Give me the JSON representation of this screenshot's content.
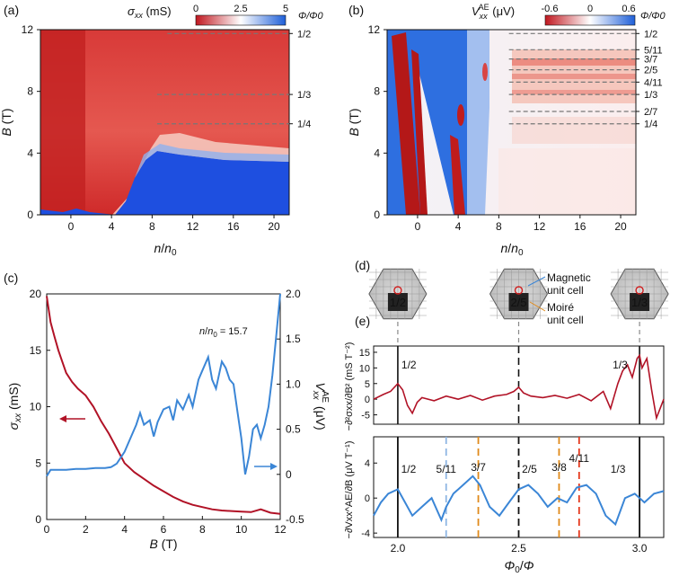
{
  "chart_data": [
    {
      "panel": "(a)",
      "type": "heatmap",
      "title": "σxx (mS)",
      "colorbar": {
        "label_sym": "σ",
        "label_sub": "xx",
        "label_unit": " (mS)",
        "ticks": [
          "0",
          "2.5",
          "5"
        ],
        "range": [
          0,
          5
        ]
      },
      "xlabel_sym": "n",
      "xlabel_tail": "/",
      "xlabel_sym2": "n",
      "xlabel_sub": "0",
      "ylabel_sym": "B",
      "ylabel_unit": " (T)",
      "xlim": [
        -3,
        21.5
      ],
      "ylim": [
        0,
        12
      ],
      "xticks": [
        0,
        4,
        8,
        12,
        16,
        20
      ],
      "yticks": [
        0,
        4,
        8,
        12
      ],
      "flux_label": "Φ/Φ0",
      "flux_lines": [
        {
          "label": "1/2",
          "B": 11.75,
          "x_start": 9.5
        },
        {
          "label": "1/3",
          "B": 7.8,
          "x_start": 8.5
        },
        {
          "label": "1/4",
          "B": 5.9,
          "x_start": 8.5
        }
      ]
    },
    {
      "panel": "(b)",
      "type": "heatmap",
      "title": "Vxx^AE (μV)",
      "colorbar": {
        "label_sym": "V",
        "label_sub": "xx",
        "label_sup": "AE",
        "label_unit": " (μV)",
        "ticks": [
          "-0.6",
          "0",
          "0.6"
        ],
        "range": [
          -0.6,
          0.6
        ]
      },
      "xlabel_sym": "n",
      "xlabel_tail": "/",
      "xlabel_sym2": "n",
      "xlabel_sub": "0",
      "ylabel_sym": "B",
      "ylabel_unit": " (T)",
      "xlim": [
        -3,
        21.5
      ],
      "ylim": [
        0,
        12
      ],
      "xticks": [
        0,
        4,
        8,
        12,
        16,
        20
      ],
      "yticks": [
        0,
        4,
        8,
        12
      ],
      "flux_label": "Φ/Φ0",
      "flux_lines": [
        {
          "label": "1/2",
          "B": 11.75
        },
        {
          "label": "5/11",
          "B": 10.7
        },
        {
          "label": "3/7",
          "B": 10.1
        },
        {
          "label": "2/5",
          "B": 9.4
        },
        {
          "label": "4/11",
          "B": 8.6
        },
        {
          "label": "1/3",
          "B": 7.8
        },
        {
          "label": "2/7",
          "B": 6.7
        },
        {
          "label": "1/4",
          "B": 5.9
        }
      ]
    },
    {
      "panel": "(c)",
      "type": "line",
      "xlabel_sym": "B",
      "xlabel_unit": " (T)",
      "xlim": [
        0,
        12
      ],
      "xticks": [
        0,
        2,
        4,
        6,
        8,
        10,
        12
      ],
      "left_ylabel_sym": "σ",
      "left_ylabel_sub": "xx",
      "left_ylabel_unit": " (mS)",
      "left_ylim": [
        0,
        20
      ],
      "left_yticks": [
        0,
        5,
        10,
        15,
        20
      ],
      "right_ylabel_sym": "V",
      "right_ylabel_sub": "xx",
      "right_ylabel_sup": "AE",
      "right_ylabel_unit": " (μV)",
      "right_ylim": [
        -0.5,
        2.0
      ],
      "right_yticks": [
        "-0.5",
        "0",
        "0.5",
        "1.0",
        "1.5",
        "2.0"
      ],
      "annotation_sym": "n",
      "annotation_sym2": "n",
      "annotation_sub": "0",
      "annotation_value": " = 15.7",
      "series": [
        {
          "name": "σxx",
          "axis": "left",
          "color": "#b11226",
          "x": [
            0,
            0.2,
            0.4,
            0.6,
            0.8,
            1.0,
            1.3,
            1.6,
            2.0,
            2.4,
            2.8,
            3.2,
            3.6,
            4.0,
            4.5,
            5.0,
            5.5,
            6.0,
            6.5,
            7.0,
            7.5,
            8.0,
            8.5,
            9.0,
            9.5,
            10.0,
            10.5,
            11.0,
            11.5,
            12.0
          ],
          "y": [
            19.8,
            17.5,
            16.2,
            15.0,
            14.0,
            13.0,
            12.2,
            11.6,
            11.0,
            10.0,
            8.7,
            7.6,
            6.3,
            5.0,
            4.2,
            3.6,
            3.0,
            2.5,
            2.0,
            1.6,
            1.3,
            1.1,
            0.9,
            0.8,
            0.75,
            0.7,
            0.65,
            0.9,
            0.6,
            0.5
          ]
        },
        {
          "name": "Vxx^AE",
          "axis": "right",
          "color": "#3b86d6",
          "x": [
            0,
            0.2,
            0.5,
            1.0,
            1.5,
            2.0,
            2.5,
            3.0,
            3.3,
            3.6,
            4.0,
            4.3,
            4.6,
            4.8,
            5.0,
            5.3,
            5.5,
            5.7,
            6.0,
            6.3,
            6.5,
            6.7,
            7.0,
            7.3,
            7.5,
            7.8,
            8.0,
            8.3,
            8.5,
            8.7,
            9.0,
            9.2,
            9.4,
            9.6,
            9.8,
            10.0,
            10.2,
            10.4,
            10.6,
            10.8,
            11.0,
            11.2,
            11.4,
            11.6,
            11.8,
            12.0
          ],
          "y": [
            -0.02,
            0.05,
            0.05,
            0.05,
            0.06,
            0.06,
            0.07,
            0.07,
            0.08,
            0.12,
            0.25,
            0.4,
            0.55,
            0.68,
            0.55,
            0.6,
            0.42,
            0.58,
            0.72,
            0.75,
            0.6,
            0.82,
            0.72,
            0.88,
            0.75,
            1.05,
            1.15,
            1.3,
            1.05,
            0.95,
            1.25,
            1.18,
            1.05,
            1.0,
            0.7,
            0.4,
            0.0,
            0.2,
            0.5,
            0.55,
            0.4,
            0.55,
            0.75,
            1.1,
            1.55,
            2.0
          ]
        }
      ]
    },
    {
      "panel": "(d)",
      "type": "diagram",
      "cells": [
        {
          "label": "1/2",
          "x": 2.0
        },
        {
          "label": "2/5",
          "x": 2.5
        },
        {
          "label": "1/3",
          "x": 3.0
        }
      ],
      "legend": [
        "Magnetic",
        "unit cell",
        "Moiré",
        "unit cell"
      ]
    },
    {
      "panel": "(e)",
      "type": "line",
      "xlabel_sym": "Φ",
      "xlabel_sub": "0",
      "xlabel_tail": "/",
      "xlabel_sym2": "Φ",
      "xlim": [
        1.9,
        3.1
      ],
      "xticks": [
        "2.0",
        "2.5",
        "3.0"
      ],
      "top": {
        "ylabel": "−∂²σxx/∂B² (mS T⁻²)",
        "ylim": [
          -8,
          17
        ],
        "yticks": [
          -5,
          0,
          5,
          10,
          15
        ],
        "color": "#b11226",
        "x": [
          1.9,
          1.94,
          1.97,
          2.0,
          2.02,
          2.04,
          2.06,
          2.08,
          2.1,
          2.15,
          2.2,
          2.25,
          2.3,
          2.35,
          2.4,
          2.45,
          2.48,
          2.5,
          2.52,
          2.55,
          2.6,
          2.65,
          2.7,
          2.75,
          2.8,
          2.85,
          2.88,
          2.91,
          2.93,
          2.95,
          2.97,
          2.99,
          3.0,
          3.01,
          3.03,
          3.05,
          3.07,
          3.1
        ],
        "y": [
          0,
          1.5,
          2.5,
          5.0,
          3.0,
          -2.0,
          -4.5,
          -1.0,
          0.5,
          -0.5,
          1.0,
          0,
          1.2,
          -0.3,
          1.0,
          1.5,
          2.5,
          3.8,
          2.0,
          1.0,
          0.5,
          1.2,
          0.3,
          1.5,
          -0.5,
          2.5,
          -3.0,
          5.0,
          9.0,
          11.0,
          7.0,
          13.0,
          14.0,
          10.0,
          13.0,
          3.0,
          -6.0,
          0
        ],
        "labels": [
          {
            "text": "1/2",
            "x": 2.0
          },
          {
            "text": "1/3",
            "x": 3.0
          }
        ]
      },
      "bottom": {
        "ylabel": "−∂Vxx^AE/∂B (μV T⁻¹)",
        "ylim": [
          -4.5,
          7
        ],
        "yticks": [
          -4,
          0,
          4
        ],
        "color": "#3b86d6",
        "x": [
          1.9,
          1.93,
          1.96,
          2.0,
          2.03,
          2.06,
          2.1,
          2.14,
          2.18,
          2.2,
          2.23,
          2.27,
          2.31,
          2.34,
          2.38,
          2.42,
          2.46,
          2.5,
          2.54,
          2.58,
          2.62,
          2.66,
          2.7,
          2.74,
          2.78,
          2.82,
          2.86,
          2.9,
          2.94,
          2.98,
          3.02,
          3.06,
          3.1
        ],
        "y": [
          -2.0,
          -0.5,
          0.5,
          1.0,
          -0.5,
          -2.0,
          -1.0,
          0,
          -2.5,
          -1.0,
          0.5,
          1.5,
          2.5,
          1.5,
          -1.0,
          -2.0,
          -0.5,
          1.0,
          1.5,
          0.5,
          -1.0,
          0,
          -0.5,
          1.2,
          1.5,
          0.5,
          -2.0,
          -3.0,
          0,
          0.5,
          -0.5,
          0.5,
          0.8
        ],
        "markers": [
          {
            "text": "1/2",
            "x": 2.0,
            "color": "#111111",
            "style": "solid"
          },
          {
            "text": "5/11",
            "x": 2.2,
            "color": "#8fb6e3",
            "style": "dashed"
          },
          {
            "text": "3/7",
            "x": 2.333,
            "color": "#e08a1a",
            "style": "dashed"
          },
          {
            "text": "2/5",
            "x": 2.5,
            "color": "#111111",
            "style": "dashed"
          },
          {
            "text": "3/8",
            "x": 2.667,
            "color": "#e08a1a",
            "style": "dashed"
          },
          {
            "text": "4/11",
            "x": 2.75,
            "color": "#e5361a",
            "style": "dashed"
          },
          {
            "text": "1/3",
            "x": 3.0,
            "color": "#111111",
            "style": "solid"
          }
        ]
      }
    }
  ]
}
